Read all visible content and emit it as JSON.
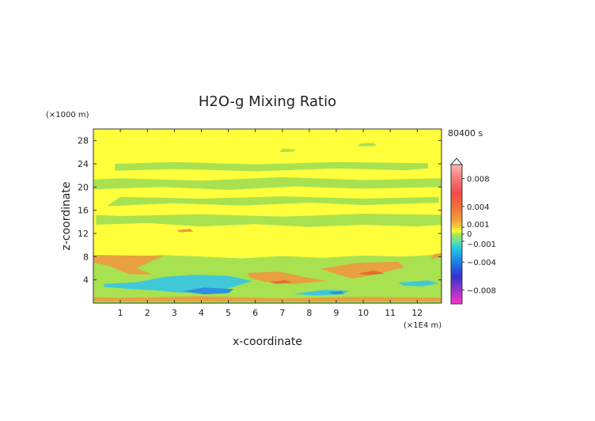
{
  "chart_data": {
    "type": "heatmap",
    "title": "H2O-g Mixing Ratio",
    "xlabel": "x-coordinate",
    "ylabel": "z-coordinate",
    "x_unit": "(×1E4 m)",
    "y_unit": "(×1000 m)",
    "time_label": "80400 s",
    "xlim": [
      0,
      12.9
    ],
    "ylim": [
      0,
      30
    ],
    "x_ticks": [
      "1",
      "2",
      "3",
      "4",
      "5",
      "6",
      "7",
      "8",
      "9",
      "10",
      "11",
      "12"
    ],
    "y_ticks": [
      "4",
      "8",
      "12",
      "16",
      "20",
      "24",
      "28"
    ],
    "colorbar": {
      "tick_labels": [
        "0.008",
        "0.004",
        "0.001",
        "0",
        "−0.001",
        "−0.004",
        "−0.008"
      ],
      "tick_values": [
        0.008,
        0.004,
        0.001,
        0,
        -0.001,
        -0.004,
        -0.008
      ],
      "range": [
        -0.01,
        0.01
      ],
      "stops": [
        {
          "v": -0.01,
          "color": "#ff33cc"
        },
        {
          "v": -0.008,
          "color": "#9933cc"
        },
        {
          "v": -0.006,
          "color": "#3333cc"
        },
        {
          "v": -0.004,
          "color": "#1a7fe6"
        },
        {
          "v": -0.002,
          "color": "#22c7e6"
        },
        {
          "v": -0.001,
          "color": "#66e0a0"
        },
        {
          "v": 0,
          "color": "#a6e64d"
        },
        {
          "v": 0.0005,
          "color": "#ffff33"
        },
        {
          "v": 0.001,
          "color": "#f2d23a"
        },
        {
          "v": 0.002,
          "color": "#f2a23a"
        },
        {
          "v": 0.004,
          "color": "#f26d3a"
        },
        {
          "v": 0.006,
          "color": "#f24a4a"
        },
        {
          "v": 0.008,
          "color": "#f27a7a"
        },
        {
          "v": 0.01,
          "color": "#ffb3b3"
        }
      ]
    },
    "field_colors": {
      "background": "#ffff3c",
      "green": "#a8e250",
      "orange": "#e8a040",
      "cyan": "#40c8d8",
      "blue": "#3090e0",
      "red_orange": "#e07030"
    },
    "regions": [
      {
        "color": "green",
        "points": [
          [
            0,
            0
          ],
          [
            12.9,
            0
          ],
          [
            12.9,
            8.4
          ],
          [
            11.5,
            8.0
          ],
          [
            10,
            8.2
          ],
          [
            8.5,
            7.8
          ],
          [
            7,
            8.1
          ],
          [
            5.5,
            7.7
          ],
          [
            4,
            8.0
          ],
          [
            2.5,
            8.3
          ],
          [
            1,
            7.9
          ],
          [
            0,
            8.2
          ]
        ]
      },
      {
        "color": "green",
        "points": [
          [
            0.1,
            13.5
          ],
          [
            2,
            13.8
          ],
          [
            4,
            13.2
          ],
          [
            6,
            13.6
          ],
          [
            8,
            13.1
          ],
          [
            10,
            13.5
          ],
          [
            12,
            13.2
          ],
          [
            12.9,
            13.5
          ],
          [
            12.9,
            15.2
          ],
          [
            10,
            15.4
          ],
          [
            7,
            14.9
          ],
          [
            4,
            15.3
          ],
          [
            1,
            15.0
          ],
          [
            0.1,
            15.2
          ]
        ]
      },
      {
        "color": "green",
        "points": [
          [
            0.5,
            16.7
          ],
          [
            3,
            17.2
          ],
          [
            5.5,
            16.8
          ],
          [
            8,
            17.3
          ],
          [
            10,
            16.9
          ],
          [
            12.8,
            17.3
          ],
          [
            12.8,
            18.3
          ],
          [
            10,
            18.0
          ],
          [
            7,
            18.4
          ],
          [
            4,
            18.0
          ],
          [
            1,
            18.3
          ]
        ]
      },
      {
        "color": "green",
        "points": [
          [
            0,
            19.6
          ],
          [
            2.5,
            20.0
          ],
          [
            5,
            19.5
          ],
          [
            7.5,
            20.1
          ],
          [
            10,
            19.7
          ],
          [
            12.9,
            20.0
          ],
          [
            12.9,
            21.5
          ],
          [
            10,
            21.2
          ],
          [
            7,
            21.7
          ],
          [
            4,
            21.1
          ],
          [
            1,
            21.5
          ],
          [
            0,
            21.3
          ]
        ]
      },
      {
        "color": "green",
        "points": [
          [
            0.8,
            22.8
          ],
          [
            3,
            23.1
          ],
          [
            6,
            22.7
          ],
          [
            9,
            23.2
          ],
          [
            11.5,
            22.9
          ],
          [
            12.4,
            23.2
          ],
          [
            12.4,
            24.1
          ],
          [
            9,
            24.3
          ],
          [
            6,
            23.9
          ],
          [
            3,
            24.3
          ],
          [
            0.8,
            24.0
          ]
        ]
      },
      {
        "color": "green",
        "points": [
          [
            6.9,
            26.0
          ],
          [
            7.4,
            26.1
          ],
          [
            7.5,
            26.5
          ],
          [
            7.0,
            26.6
          ]
        ]
      },
      {
        "color": "green",
        "points": [
          [
            9.8,
            27.0
          ],
          [
            10.5,
            27.1
          ],
          [
            10.4,
            27.6
          ],
          [
            9.9,
            27.5
          ]
        ]
      },
      {
        "color": "orange",
        "points": [
          [
            0,
            8.3
          ],
          [
            2.6,
            8.1
          ],
          [
            2.1,
            7.1
          ],
          [
            1.6,
            6.0
          ],
          [
            2.2,
            4.9
          ],
          [
            1.3,
            5.0
          ],
          [
            0.6,
            6.4
          ],
          [
            0,
            7.0
          ]
        ]
      },
      {
        "color": "orange",
        "points": [
          [
            5.7,
            5.2
          ],
          [
            6.9,
            5.4
          ],
          [
            7.7,
            4.6
          ],
          [
            8.7,
            3.8
          ],
          [
            7.4,
            3.3
          ],
          [
            6.3,
            3.7
          ],
          [
            5.8,
            4.4
          ]
        ]
      },
      {
        "color": "orange",
        "points": [
          [
            8.4,
            5.9
          ],
          [
            9.7,
            6.9
          ],
          [
            11.3,
            7.1
          ],
          [
            11.5,
            6.2
          ],
          [
            10.6,
            5.1
          ],
          [
            9.6,
            4.2
          ],
          [
            9.0,
            5.0
          ]
        ]
      },
      {
        "color": "orange",
        "points": [
          [
            0,
            0.3
          ],
          [
            12.9,
            0.3
          ],
          [
            12.9,
            0.9
          ],
          [
            10,
            1.1
          ],
          [
            7,
            0.8
          ],
          [
            4,
            1.2
          ],
          [
            1,
            0.9
          ],
          [
            0,
            1.0
          ]
        ]
      },
      {
        "color": "orange",
        "points": [
          [
            12.5,
            7.6
          ],
          [
            12.9,
            7.9
          ],
          [
            12.9,
            8.6
          ],
          [
            12.6,
            8.4
          ]
        ]
      },
      {
        "color": "orange",
        "points": [
          [
            3.2,
            12.2
          ],
          [
            3.7,
            12.3
          ],
          [
            3.6,
            12.8
          ],
          [
            3.1,
            12.6
          ]
        ]
      },
      {
        "color": "cyan",
        "points": [
          [
            0.4,
            3.3
          ],
          [
            1.6,
            3.6
          ],
          [
            2.6,
            4.5
          ],
          [
            3.8,
            4.9
          ],
          [
            5.0,
            4.7
          ],
          [
            5.9,
            3.8
          ],
          [
            5.2,
            2.8
          ],
          [
            4.4,
            1.9
          ],
          [
            3.2,
            1.8
          ],
          [
            2.3,
            2.2
          ],
          [
            1.2,
            2.5
          ],
          [
            0.4,
            2.8
          ]
        ]
      },
      {
        "color": "cyan",
        "points": [
          [
            7.4,
            1.6
          ],
          [
            8.6,
            2.3
          ],
          [
            9.5,
            2.1
          ],
          [
            9.2,
            1.5
          ],
          [
            8.2,
            1.3
          ]
        ]
      },
      {
        "color": "cyan",
        "points": [
          [
            11.3,
            3.5
          ],
          [
            12.4,
            3.9
          ],
          [
            12.8,
            3.4
          ],
          [
            12.2,
            2.9
          ],
          [
            11.5,
            3.0
          ]
        ]
      },
      {
        "color": "blue",
        "points": [
          [
            3.3,
            2.0
          ],
          [
            4.1,
            2.7
          ],
          [
            5.2,
            2.4
          ],
          [
            5.0,
            1.7
          ],
          [
            4.1,
            1.5
          ]
        ]
      },
      {
        "color": "blue",
        "points": [
          [
            8.7,
            1.9
          ],
          [
            9.2,
            2.1
          ],
          [
            9.3,
            1.6
          ],
          [
            8.9,
            1.5
          ]
        ]
      },
      {
        "color": "red_orange",
        "points": [
          [
            6.5,
            3.6
          ],
          [
            7.1,
            4.0
          ],
          [
            7.4,
            3.5
          ],
          [
            6.8,
            3.3
          ]
        ]
      },
      {
        "color": "red_orange",
        "points": [
          [
            9.8,
            5.1
          ],
          [
            10.4,
            5.6
          ],
          [
            10.8,
            5.1
          ],
          [
            10.2,
            4.8
          ]
        ]
      }
    ]
  }
}
